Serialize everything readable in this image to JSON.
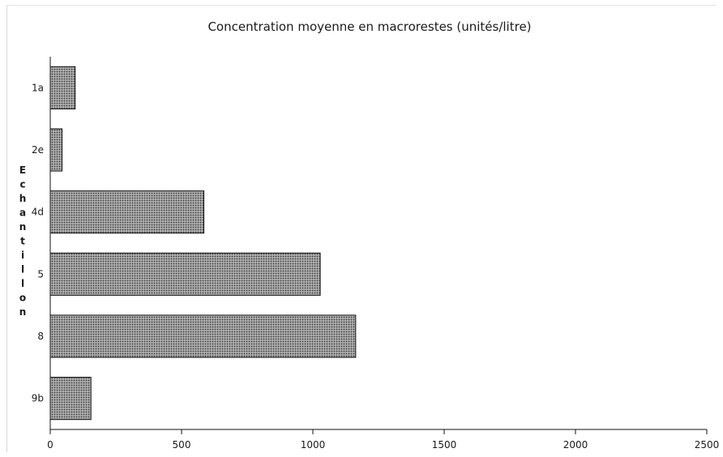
{
  "chart_data": {
    "type": "bar",
    "orientation": "horizontal",
    "title": "Concentration moyenne en macrorestes (unités/litre)",
    "ylabel": "Echantillon",
    "xlabel": "",
    "categories": [
      "1a",
      "2e",
      "4d",
      "5",
      "8",
      "9b"
    ],
    "values": [
      95,
      45,
      585,
      1028,
      1163,
      155
    ],
    "xlim": [
      0,
      2500
    ],
    "x_ticks": [
      0,
      500,
      1000,
      1500,
      2000,
      2500
    ],
    "grid": false,
    "legend": "none",
    "colors": {
      "bar_fill": "#8a8a8a",
      "bar_outline": "#111111"
    }
  }
}
